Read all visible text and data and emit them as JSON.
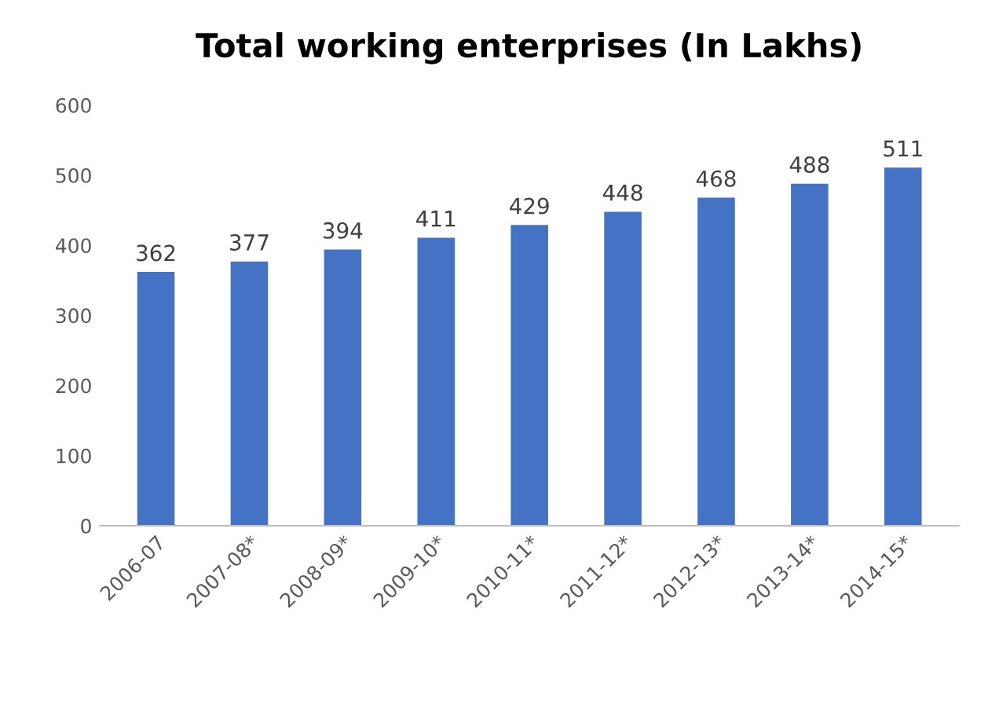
{
  "chart_data": {
    "type": "bar",
    "title": "Total working enterprises (In Lakhs)",
    "categories": [
      "2006-07",
      "2007-08*",
      "2008-09*",
      "2009-10*",
      "2010-11*",
      "2011-12*",
      "2012-13*",
      "2013-14*",
      "2014-15*"
    ],
    "values": [
      362,
      377,
      394,
      411,
      429,
      448,
      468,
      488,
      511
    ],
    "color": "#4472c4",
    "ylim": [
      0,
      600
    ],
    "yticks": [
      0,
      100,
      200,
      300,
      400,
      500,
      600
    ],
    "grid": false,
    "data_labels": true
  }
}
